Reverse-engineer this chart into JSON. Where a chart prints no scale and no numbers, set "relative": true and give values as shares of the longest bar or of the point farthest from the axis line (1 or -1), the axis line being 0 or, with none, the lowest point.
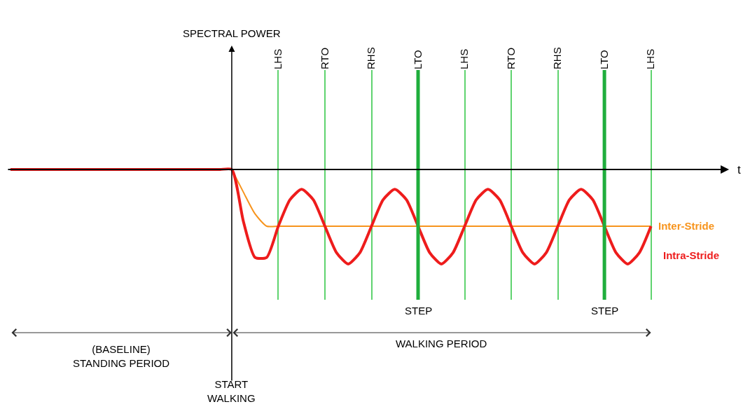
{
  "chart_data": {
    "type": "line",
    "relative": true,
    "categories": [
      null,
      null,
      null,
      null,
      null,
      null,
      null,
      null,
      null,
      null,
      null,
      null,
      null,
      null,
      null,
      null,
      null,
      null,
      null,
      null,
      null,
      null,
      null,
      "LHS",
      null,
      null,
      null,
      "RTO",
      null,
      null,
      null,
      "RHS",
      null,
      null,
      null,
      "LTO",
      null,
      null,
      null,
      "LHS",
      null,
      null,
      null,
      "RTO",
      null,
      null,
      null,
      "RHS",
      null,
      null,
      null,
      "LTO",
      null,
      null,
      null,
      "LHS"
    ],
    "series": [
      {
        "name": "Inter-Stride",
        "color": "#f7941d",
        "values": [
          null,
          null,
          null,
          null,
          null,
          null,
          null,
          null,
          null,
          null,
          null,
          null,
          null,
          null,
          null,
          null,
          null,
          null,
          null,
          0,
          -0.24,
          -0.47,
          -0.6,
          -0.6,
          -0.6,
          -0.6,
          -0.6,
          -0.6,
          -0.6,
          -0.6,
          -0.6,
          -0.6,
          -0.6,
          -0.6,
          -0.6,
          -0.6,
          -0.6,
          -0.6,
          -0.6,
          -0.6,
          -0.6,
          -0.6,
          -0.6,
          -0.6,
          -0.6,
          -0.6,
          -0.6,
          -0.6,
          -0.6,
          -0.6,
          -0.6,
          -0.6,
          -0.6,
          -0.6,
          -0.6,
          -0.6
        ]
      },
      {
        "name": "Intra-Stride",
        "color": "#ee1c1c",
        "values": [
          0,
          0,
          0,
          0,
          0,
          0,
          0,
          0,
          0,
          0,
          0,
          0,
          0,
          0,
          0,
          0,
          0,
          0,
          0,
          0,
          -0.55,
          -0.93,
          -0.93,
          -0.6,
          -0.32,
          -0.21,
          -0.32,
          -0.6,
          -0.88,
          -1,
          -0.88,
          -0.6,
          -0.32,
          -0.21,
          -0.32,
          -0.6,
          -0.88,
          -1,
          -0.88,
          -0.6,
          -0.32,
          -0.21,
          -0.32,
          -0.6,
          -0.88,
          -1,
          -0.88,
          -0.6,
          -0.32,
          -0.21,
          -0.32,
          -0.6,
          -0.88,
          -1,
          -0.88,
          -0.6
        ]
      }
    ],
    "annotations": [
      "SPECTRAL POWER",
      "t",
      "(BASELINE)\nSTANDING PERIOD",
      "WALKING PERIOD",
      "START\nWALKING",
      "STEP",
      "STEP"
    ],
    "tick_labels": "x",
    "grid": "x",
    "legend": false,
    "marker": "none",
    "line_style": "solid"
  }
}
